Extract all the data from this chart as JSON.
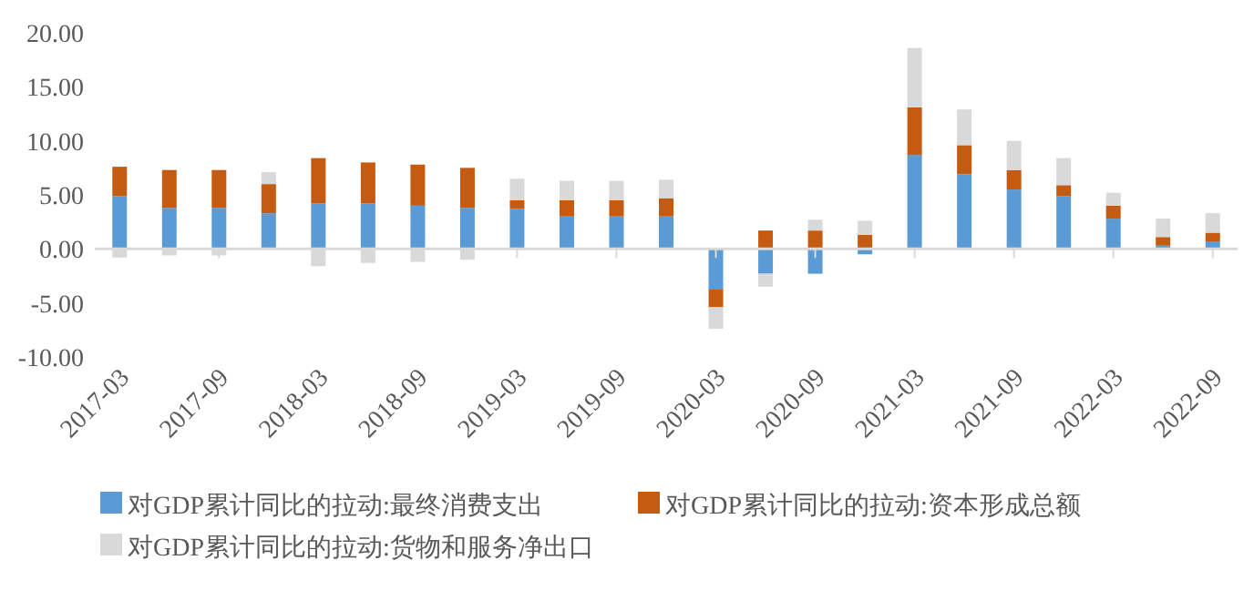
{
  "chart_data": {
    "type": "bar",
    "stacked": true,
    "categories": [
      "2017-03",
      null,
      "2017-09",
      null,
      "2018-03",
      null,
      "2018-09",
      null,
      "2019-03",
      null,
      "2019-09",
      null,
      "2020-03",
      null,
      "2020-09",
      null,
      "2021-03",
      null,
      "2021-09",
      null,
      "2022-03",
      null,
      "2022-09"
    ],
    "series": [
      {
        "name": "对GDP累计同比的拉动:最终消费支出",
        "color": "#5b9bd5",
        "values": [
          4.9,
          3.8,
          3.8,
          3.3,
          4.2,
          4.2,
          4.0,
          3.8,
          3.7,
          3.0,
          3.0,
          3.0,
          -3.7,
          -2.3,
          -2.3,
          -0.5,
          8.7,
          6.9,
          5.5,
          4.9,
          2.8,
          0.3,
          0.7
        ]
      },
      {
        "name": "对GDP累计同比的拉动:资本形成总额",
        "color": "#c55a11",
        "values": [
          2.7,
          3.5,
          3.5,
          2.7,
          4.2,
          3.8,
          3.8,
          3.7,
          0.8,
          1.5,
          1.5,
          1.7,
          -1.7,
          1.7,
          1.7,
          1.3,
          4.4,
          2.7,
          1.8,
          1.0,
          1.2,
          0.8,
          0.8
        ]
      },
      {
        "name": "对GDP累计同比的拉动:货物和服务净出口",
        "color": "#d9d9d9",
        "values": [
          -0.8,
          -0.6,
          -0.6,
          1.1,
          -1.6,
          -1.3,
          -1.2,
          -1.0,
          2.0,
          1.8,
          1.8,
          1.7,
          -2.0,
          -1.2,
          1.0,
          1.3,
          5.5,
          3.3,
          2.7,
          2.5,
          1.2,
          1.7,
          1.8
        ]
      }
    ],
    "ylim": [
      -10,
      20
    ],
    "yticks": [
      {
        "value": -10,
        "label": "-10.00"
      },
      {
        "value": -5,
        "label": "-5.00"
      },
      {
        "value": 0,
        "label": "0.00"
      },
      {
        "value": 5,
        "label": "5.00"
      },
      {
        "value": 10,
        "label": "10.00"
      },
      {
        "value": 15,
        "label": "15.00"
      },
      {
        "value": 20,
        "label": "20.00"
      }
    ],
    "legend": "bottom"
  }
}
